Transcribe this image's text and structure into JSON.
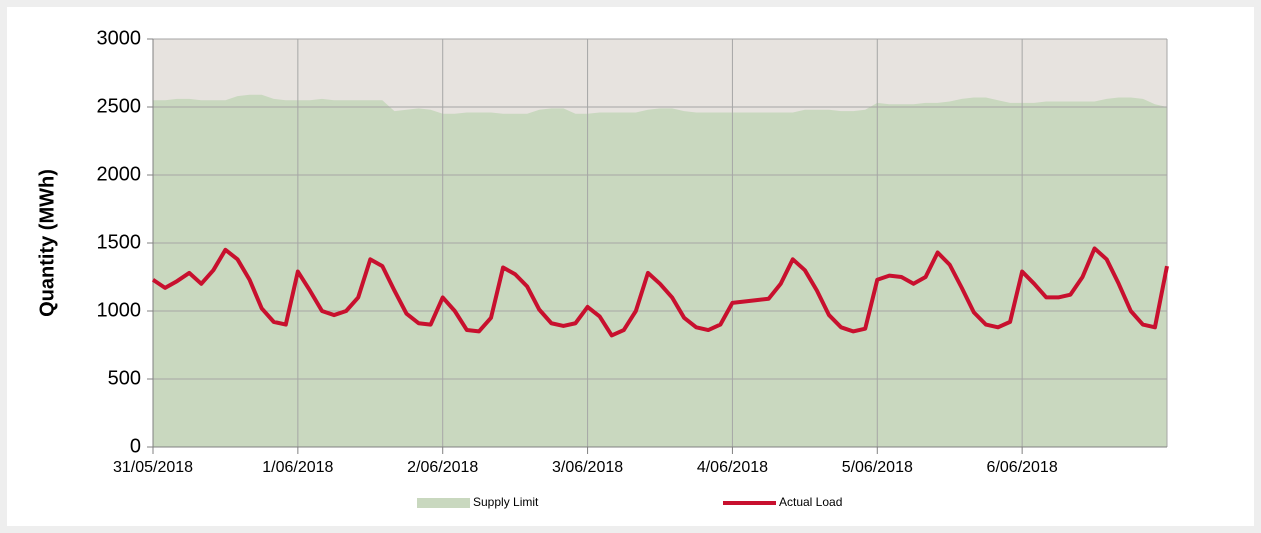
{
  "chart_data": {
    "type": "line",
    "y_label": "Quantity (MWh)",
    "categories": [
      "31/05/2018",
      null,
      null,
      null,
      null,
      null,
      null,
      null,
      null,
      null,
      null,
      null,
      "1/06/2018",
      null,
      null,
      null,
      null,
      null,
      null,
      null,
      null,
      null,
      null,
      null,
      "2/06/2018",
      null,
      null,
      null,
      null,
      null,
      null,
      null,
      null,
      null,
      null,
      null,
      "3/06/2018",
      null,
      null,
      null,
      null,
      null,
      null,
      null,
      null,
      null,
      null,
      null,
      "4/06/2018",
      null,
      null,
      null,
      null,
      null,
      null,
      null,
      null,
      null,
      null,
      null,
      "5/06/2018",
      null,
      null,
      null,
      null,
      null,
      null,
      null,
      null,
      null,
      null,
      null,
      "6/06/2018",
      null,
      null,
      null,
      null,
      null,
      null,
      null,
      null,
      null,
      null,
      null,
      null
    ],
    "series": [
      {
        "name": "Supply Limit",
        "kind": "area",
        "color": "#c9d8bf",
        "values": [
          2550,
          2550,
          2560,
          2560,
          2550,
          2550,
          2550,
          2580,
          2590,
          2590,
          2560,
          2550,
          2550,
          2550,
          2560,
          2550,
          2550,
          2550,
          2550,
          2550,
          2470,
          2480,
          2490,
          2480,
          2450,
          2450,
          2460,
          2460,
          2460,
          2450,
          2450,
          2450,
          2480,
          2490,
          2490,
          2450,
          2450,
          2460,
          2460,
          2460,
          2460,
          2480,
          2490,
          2490,
          2470,
          2460,
          2460,
          2460,
          2460,
          2460,
          2460,
          2460,
          2460,
          2460,
          2480,
          2480,
          2480,
          2470,
          2470,
          2480,
          2530,
          2520,
          2520,
          2520,
          2530,
          2530,
          2540,
          2560,
          2570,
          2570,
          2550,
          2530,
          2530,
          2530,
          2540,
          2540,
          2540,
          2540,
          2540,
          2560,
          2570,
          2570,
          2560,
          2520,
          2500
        ]
      },
      {
        "name": "Actual Load",
        "kind": "line",
        "color": "#c8102e",
        "values": [
          1230,
          1170,
          1220,
          1280,
          1200,
          1300,
          1450,
          1380,
          1230,
          1020,
          920,
          900,
          1290,
          1150,
          1000,
          970,
          1000,
          1100,
          1380,
          1330,
          1150,
          980,
          910,
          900,
          1100,
          1000,
          860,
          850,
          950,
          1320,
          1270,
          1180,
          1010,
          910,
          890,
          910,
          1030,
          960,
          820,
          860,
          1000,
          1280,
          1200,
          1100,
          950,
          880,
          860,
          900,
          1060,
          1070,
          1080,
          1090,
          1200,
          1380,
          1300,
          1150,
          970,
          880,
          850,
          870,
          1230,
          1260,
          1250,
          1200,
          1250,
          1430,
          1340,
          1170,
          990,
          900,
          880,
          920,
          1290,
          1200,
          1100,
          1100,
          1120,
          1250,
          1460,
          1380,
          1200,
          1000,
          900,
          880,
          1330
        ]
      }
    ],
    "ylim": [
      0,
      3000
    ],
    "yticks": [
      0,
      500,
      1000,
      1500,
      2000,
      2500,
      3000
    ],
    "grid": true,
    "legend": "bottom",
    "plot_background": "#e7e3df"
  }
}
